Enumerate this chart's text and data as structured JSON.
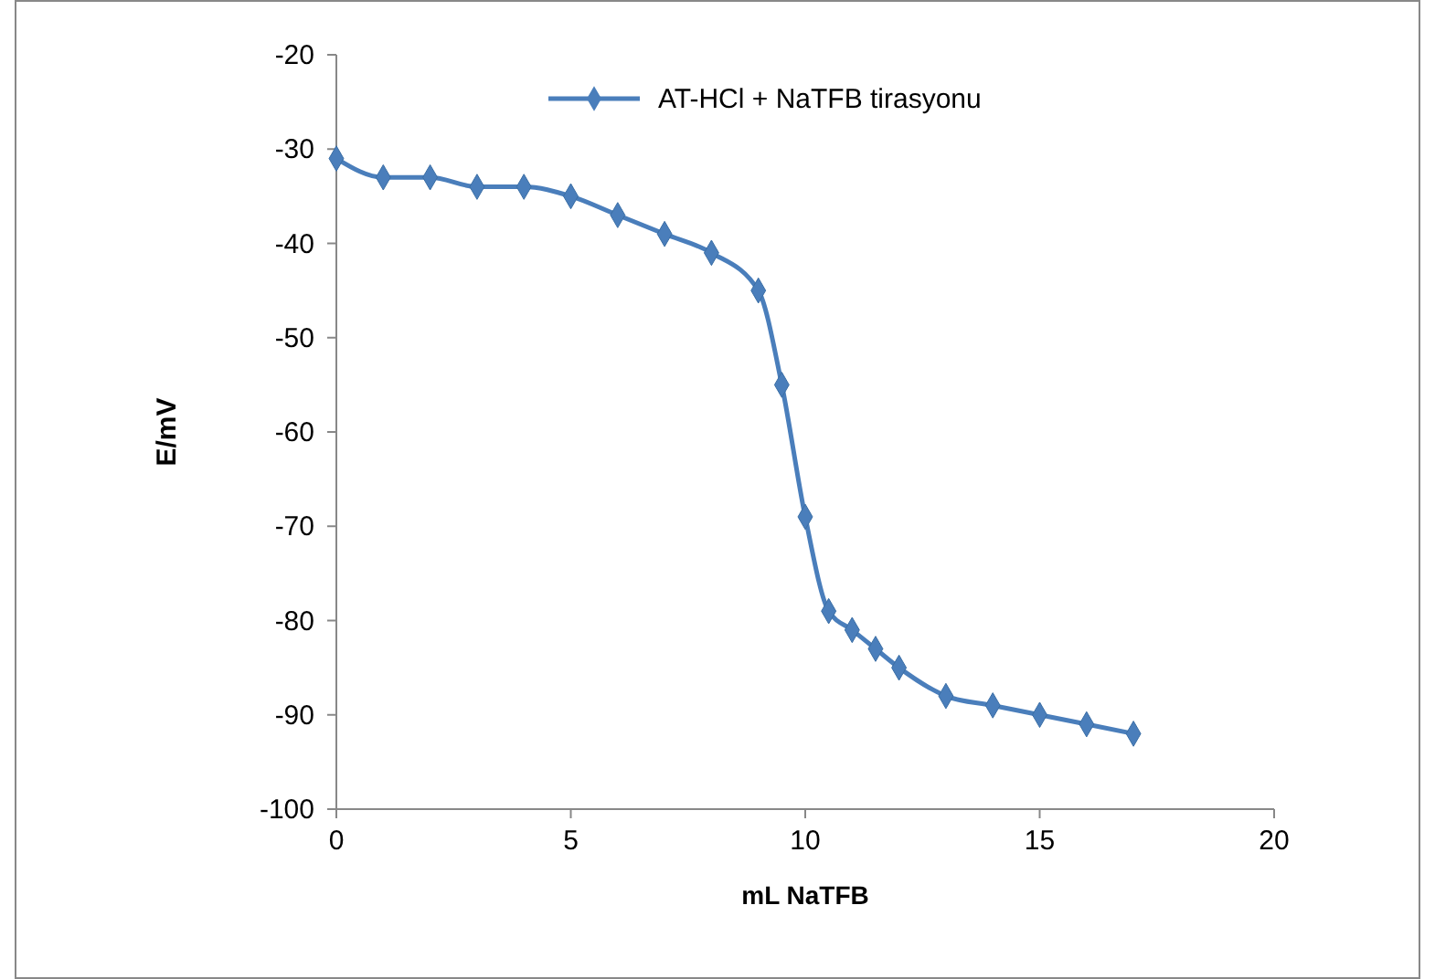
{
  "chart_data": {
    "type": "line",
    "xlabel": "mL NaTFB",
    "ylabel": "E/mV",
    "x": [
      0,
      1,
      2,
      3,
      4,
      5,
      6,
      7,
      8,
      9,
      9.5,
      10,
      10.5,
      11,
      11.5,
      12,
      13,
      14,
      15,
      16,
      17
    ],
    "series": [
      {
        "name": "AT-HCl + NaTFB tirasyonu",
        "color": "#4a7ebb",
        "values": [
          -31,
          -33,
          -33,
          -34,
          -34,
          -35,
          -37,
          -39,
          -41,
          -45,
          -55,
          -69,
          -79,
          -81,
          -83,
          -85,
          -88,
          -89,
          -90,
          -91,
          -92
        ]
      }
    ],
    "xlim": [
      0,
      20
    ],
    "xticks": [
      0,
      5,
      10,
      15,
      20
    ],
    "ylim": [
      -100,
      -20
    ],
    "yticks": [
      -100,
      -90,
      -80,
      -70,
      -60,
      -50,
      -40,
      -30,
      -20
    ],
    "grid": false,
    "legend": "top right",
    "marker": "diamond",
    "line_style": "solid"
  }
}
